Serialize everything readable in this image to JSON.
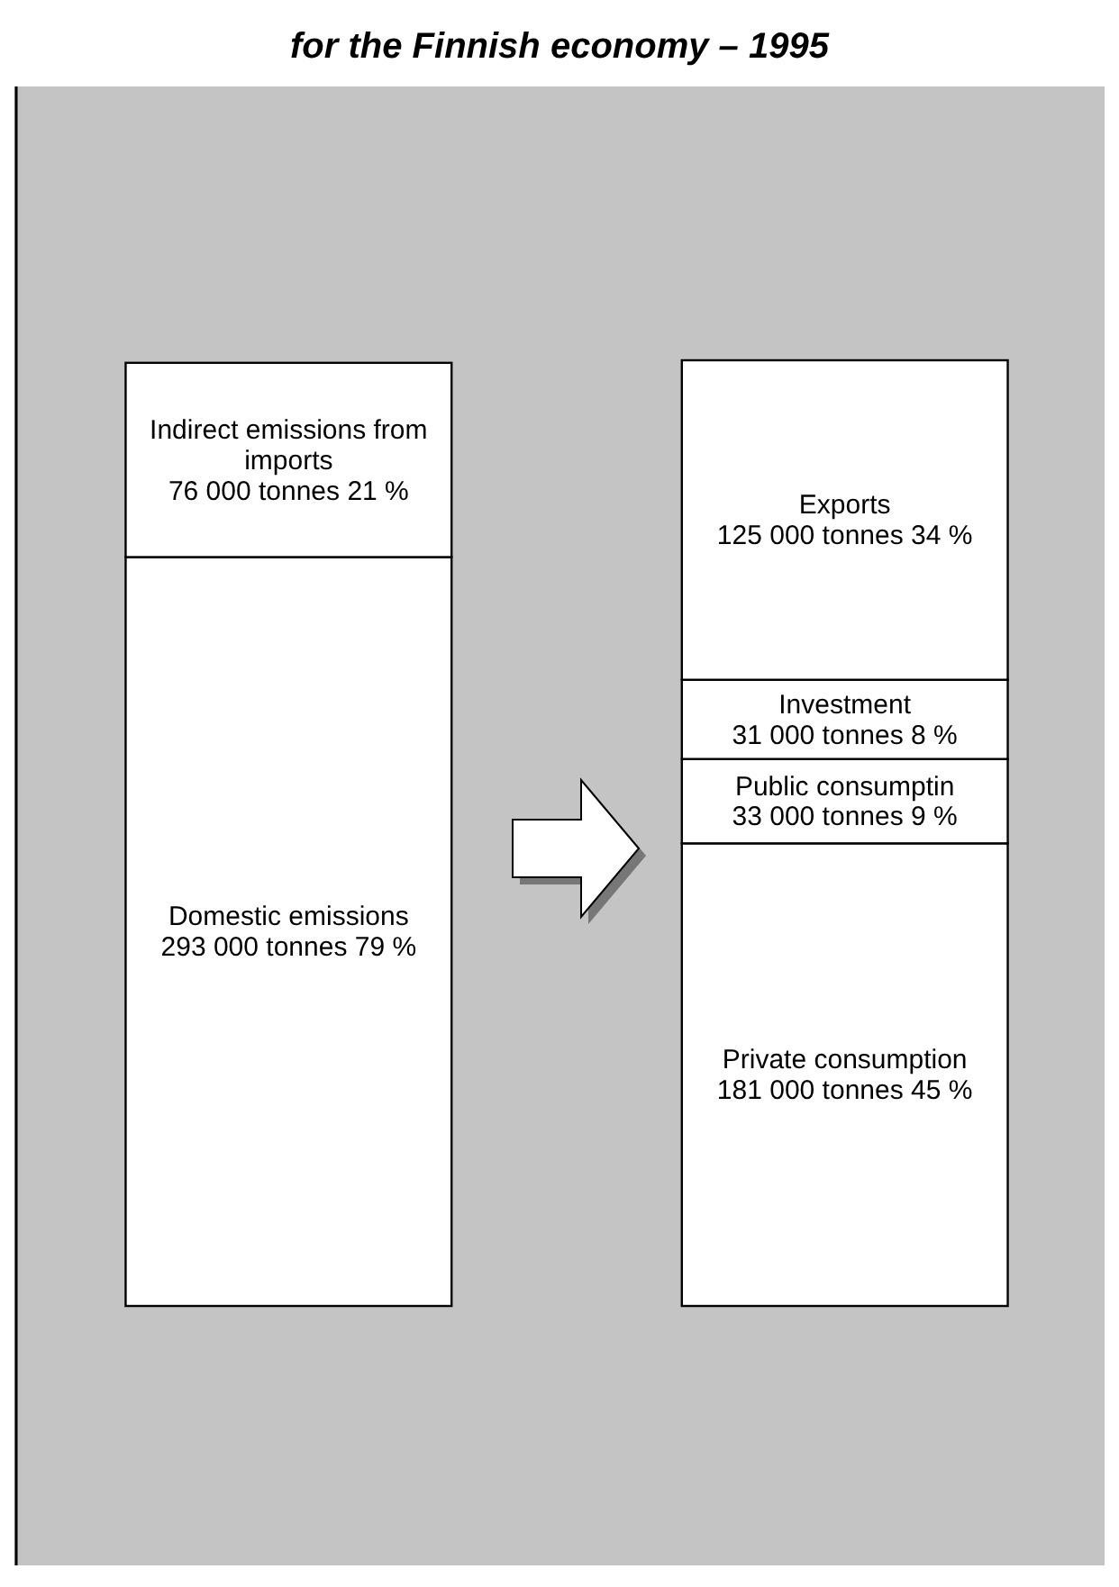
{
  "chart_data": {
    "type": "bar",
    "title": "for the Finnish economy – 1995",
    "stacked": true,
    "categories": [
      null,
      null
    ],
    "series": [
      {
        "name": "Domestic emissions",
        "color": "#ffffff",
        "values": [
          293000,
          null
        ],
        "value_labels": [
          "293 000 tonnes 79 %",
          null
        ]
      },
      {
        "name": "Indirect emissions from imports",
        "color": "#ffffff",
        "values": [
          76000,
          null
        ],
        "value_labels": [
          "76 000 tonnes 21 %",
          null
        ]
      },
      {
        "name": "Private consumption",
        "color": "#ffffff",
        "values": [
          null,
          181000
        ],
        "value_labels": [
          null,
          "181 000 tonnes 45 %"
        ]
      },
      {
        "name": "Public consumptin",
        "color": "#ffffff",
        "values": [
          null,
          33000
        ],
        "value_labels": [
          null,
          "33 000 tonnes 9 %"
        ]
      },
      {
        "name": "Investment",
        "color": "#ffffff",
        "values": [
          null,
          31000
        ],
        "value_labels": [
          null,
          "31 000 tonnes 8 %"
        ]
      },
      {
        "name": "Exports",
        "color": "#ffffff",
        "values": [
          null,
          125000
        ],
        "value_labels": [
          null,
          "125 000 tonnes 34 %"
        ]
      }
    ]
  }
}
